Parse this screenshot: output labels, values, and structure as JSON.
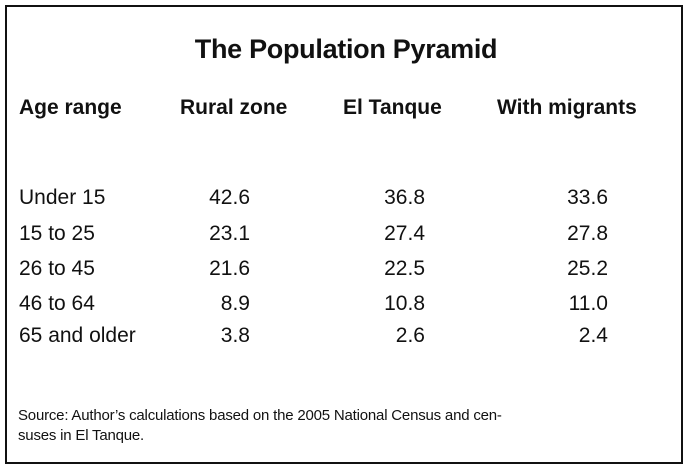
{
  "title": "The Population Pyramid",
  "headers": [
    "Age range",
    "Rural zone",
    "El Tanque",
    "With migrants"
  ],
  "rows": [
    [
      "Under 15",
      "42.6",
      "36.8",
      "33.6"
    ],
    [
      "15 to 25",
      "23.1",
      "27.4",
      "27.8"
    ],
    [
      "26 to 45",
      "21.6",
      "22.5",
      "25.2"
    ],
    [
      "46 to 64",
      "8.9",
      "10.8",
      "11.0"
    ],
    [
      "65 and older",
      "3.8",
      "2.6",
      "2.4"
    ]
  ],
  "source_line1": "Source: Author’s calculations based on the 2005 National Census and cen-",
  "source_line2": "suses in El Tanque."
}
